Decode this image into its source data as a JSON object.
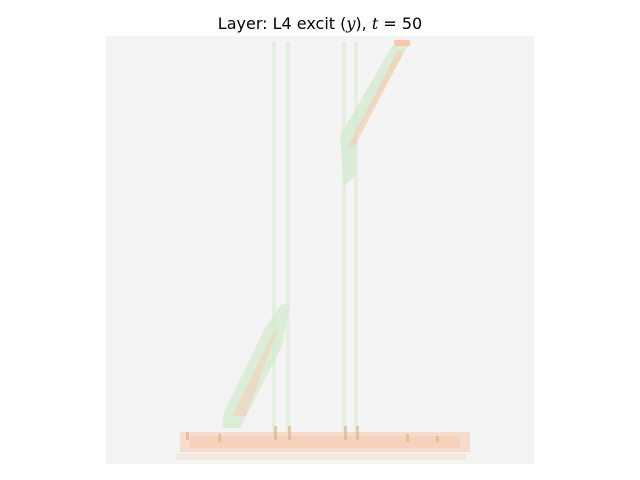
{
  "title": {
    "prefix": "Layer: L4 excit (",
    "var": "y",
    "middle": "), ",
    "t_symbol": "t",
    "equals": " = ",
    "t_value": "50"
  },
  "heatmap": {
    "background_color": "#f4f4f4",
    "positive_color": "#f6c9ad",
    "negative_color": "#d7ecd3"
  }
}
